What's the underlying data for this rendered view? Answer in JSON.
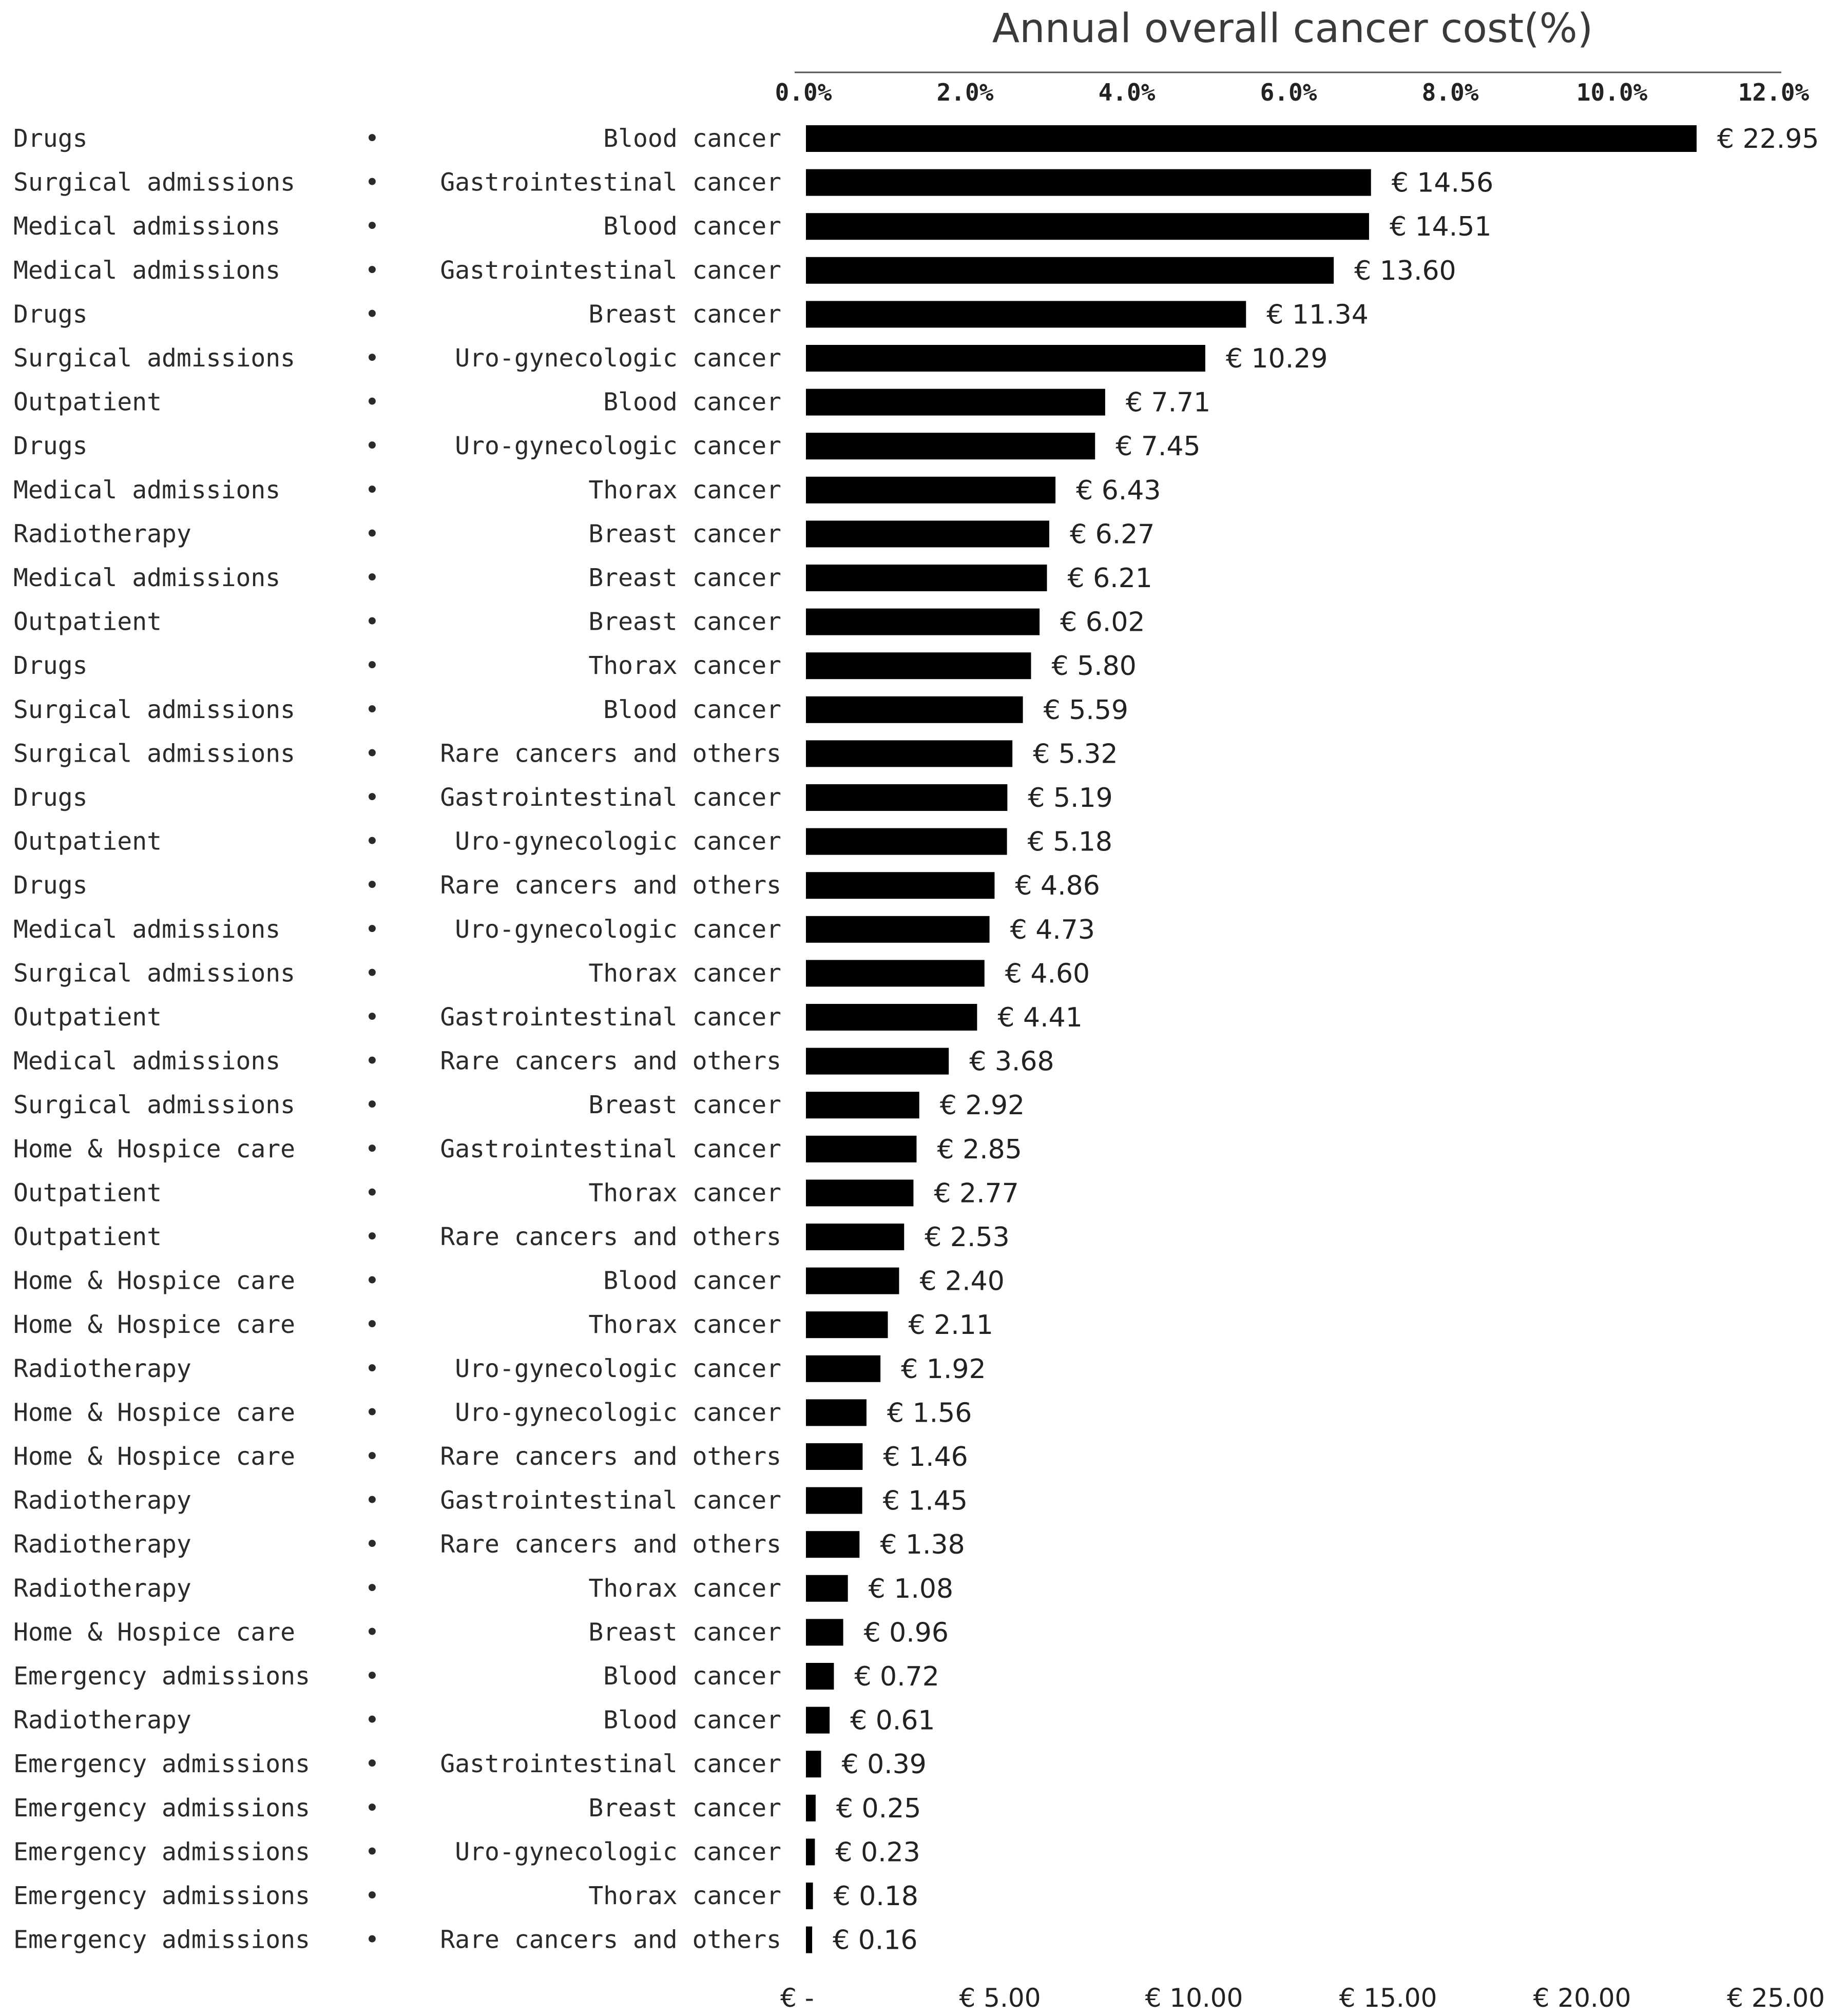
{
  "chart_data": {
    "type": "bar",
    "orientation": "horizontal",
    "title": "Annual overall cancer cost(%)",
    "top_axis": {
      "ticks": [
        "0.0%",
        "2.0%",
        "4.0%",
        "6.0%",
        "8.0%",
        "10.0%",
        "12.0%"
      ],
      "range": [
        0,
        12
      ]
    },
    "bottom_axis": {
      "ticks": [
        "€ -",
        "€ 5.00",
        "€ 10.00",
        "€ 15.00",
        "€ 20.00",
        "€ 25.00"
      ],
      "range": [
        0,
        25
      ]
    },
    "value_prefix": "€ ",
    "bar_color": "#000000",
    "rows": [
      {
        "service": "Drugs",
        "cancer": "Blood cancer",
        "value": 22.95,
        "label": "€ 22.95"
      },
      {
        "service": "Surgical admissions",
        "cancer": "Gastrointestinal cancer",
        "value": 14.56,
        "label": "€ 14.56"
      },
      {
        "service": "Medical admissions",
        "cancer": "Blood cancer",
        "value": 14.51,
        "label": "€ 14.51"
      },
      {
        "service": "Medical admissions",
        "cancer": "Gastrointestinal cancer",
        "value": 13.6,
        "label": "€ 13.60"
      },
      {
        "service": "Drugs",
        "cancer": "Breast cancer",
        "value": 11.34,
        "label": "€ 11.34"
      },
      {
        "service": "Surgical admissions",
        "cancer": "Uro-gynecologic cancer",
        "value": 10.29,
        "label": "€ 10.29"
      },
      {
        "service": "Outpatient",
        "cancer": "Blood cancer",
        "value": 7.71,
        "label": "€ 7.71"
      },
      {
        "service": "Drugs",
        "cancer": "Uro-gynecologic cancer",
        "value": 7.45,
        "label": "€ 7.45"
      },
      {
        "service": "Medical admissions",
        "cancer": "Thorax cancer",
        "value": 6.43,
        "label": "€ 6.43"
      },
      {
        "service": "Radiotherapy",
        "cancer": "Breast cancer",
        "value": 6.27,
        "label": "€ 6.27"
      },
      {
        "service": "Medical admissions",
        "cancer": "Breast cancer",
        "value": 6.21,
        "label": "€ 6.21"
      },
      {
        "service": "Outpatient",
        "cancer": "Breast cancer",
        "value": 6.02,
        "label": "€ 6.02"
      },
      {
        "service": "Drugs",
        "cancer": "Thorax cancer",
        "value": 5.8,
        "label": "€ 5.80"
      },
      {
        "service": "Surgical admissions",
        "cancer": "Blood cancer",
        "value": 5.59,
        "label": "€ 5.59"
      },
      {
        "service": "Surgical admissions",
        "cancer": "Rare cancers and others",
        "value": 5.32,
        "label": "€ 5.32"
      },
      {
        "service": "Drugs",
        "cancer": "Gastrointestinal cancer",
        "value": 5.19,
        "label": "€ 5.19"
      },
      {
        "service": "Outpatient",
        "cancer": "Uro-gynecologic cancer",
        "value": 5.18,
        "label": "€ 5.18"
      },
      {
        "service": "Drugs",
        "cancer": "Rare cancers and others",
        "value": 4.86,
        "label": "€ 4.86"
      },
      {
        "service": "Medical admissions",
        "cancer": "Uro-gynecologic cancer",
        "value": 4.73,
        "label": "€ 4.73"
      },
      {
        "service": "Surgical admissions",
        "cancer": "Thorax cancer",
        "value": 4.6,
        "label": "€ 4.60"
      },
      {
        "service": "Outpatient",
        "cancer": "Gastrointestinal cancer",
        "value": 4.41,
        "label": "€ 4.41"
      },
      {
        "service": "Medical admissions",
        "cancer": "Rare cancers and others",
        "value": 3.68,
        "label": "€ 3.68"
      },
      {
        "service": "Surgical admissions",
        "cancer": "Breast cancer",
        "value": 2.92,
        "label": "€ 2.92"
      },
      {
        "service": "Home & Hospice care",
        "cancer": "Gastrointestinal cancer",
        "value": 2.85,
        "label": "€ 2.85"
      },
      {
        "service": "Outpatient",
        "cancer": "Thorax cancer",
        "value": 2.77,
        "label": "€ 2.77"
      },
      {
        "service": "Outpatient",
        "cancer": "Rare cancers and others",
        "value": 2.53,
        "label": "€ 2.53"
      },
      {
        "service": "Home & Hospice care",
        "cancer": "Blood cancer",
        "value": 2.4,
        "label": "€ 2.40"
      },
      {
        "service": "Home & Hospice care",
        "cancer": "Thorax cancer",
        "value": 2.11,
        "label": "€ 2.11"
      },
      {
        "service": "Radiotherapy",
        "cancer": "Uro-gynecologic cancer",
        "value": 1.92,
        "label": "€ 1.92"
      },
      {
        "service": "Home & Hospice care",
        "cancer": "Uro-gynecologic cancer",
        "value": 1.56,
        "label": "€ 1.56"
      },
      {
        "service": "Home & Hospice care",
        "cancer": "Rare cancers and others",
        "value": 1.46,
        "label": "€ 1.46"
      },
      {
        "service": "Radiotherapy",
        "cancer": "Gastrointestinal cancer",
        "value": 1.45,
        "label": "€ 1.45"
      },
      {
        "service": "Radiotherapy",
        "cancer": "Rare cancers and others",
        "value": 1.38,
        "label": "€ 1.38"
      },
      {
        "service": "Radiotherapy",
        "cancer": "Thorax cancer",
        "value": 1.08,
        "label": "€ 1.08"
      },
      {
        "service": "Home & Hospice care",
        "cancer": "Breast cancer",
        "value": 0.96,
        "label": "€ 0.96"
      },
      {
        "service": "Emergency admissions",
        "cancer": "Blood cancer",
        "value": 0.72,
        "label": "€ 0.72"
      },
      {
        "service": "Radiotherapy",
        "cancer": "Blood cancer",
        "value": 0.61,
        "label": "€ 0.61"
      },
      {
        "service": "Emergency admissions",
        "cancer": "Gastrointestinal cancer",
        "value": 0.39,
        "label": "€ 0.39"
      },
      {
        "service": "Emergency admissions",
        "cancer": "Breast cancer",
        "value": 0.25,
        "label": "€ 0.25"
      },
      {
        "service": "Emergency admissions",
        "cancer": "Uro-gynecologic cancer",
        "value": 0.23,
        "label": "€ 0.23"
      },
      {
        "service": "Emergency admissions",
        "cancer": "Thorax cancer",
        "value": 0.18,
        "label": "€ 0.18"
      },
      {
        "service": "Emergency admissions",
        "cancer": "Rare cancers and others",
        "value": 0.16,
        "label": "€ 0.16"
      }
    ]
  }
}
